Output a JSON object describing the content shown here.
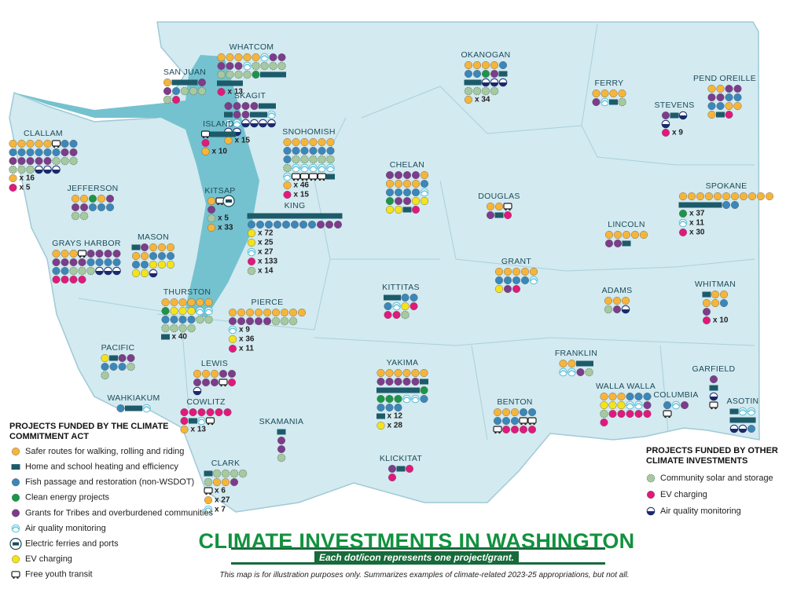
{
  "title": "CLIMATE INVESTMENTS IN WASHINGTON",
  "subtitle": "Each dot/icon represents one project/grant.",
  "note": "This map is for illustration purposes only. Summarizes examples of climate-related 2023-25 appropriations, but not all.",
  "legend": [
    {
      "heading": "PROJECTS FUNDED BY THE CLIMATE COMMITMENT ACT",
      "items": [
        "Safer routes for walking, rolling and riding",
        "Home and school heating and efficiency",
        "Fish passage and restoration (non-WSDOT)",
        "Clean energy projects",
        "Grants for Tribes and overburdened communities",
        "Air quality monitoring",
        "Electric ferries and ports",
        "EV charging",
        "Free youth transit"
      ]
    },
    {
      "heading": "PROJECTS FUNDED BY OTHER CLIMATE INVESTMENTS",
      "items": [
        "Community solar and storage",
        "EV charging",
        "Air quality monitoring"
      ]
    }
  ],
  "counties": [
    {
      "name": "WHATCOM",
      "items": [
        [
          0,
          5
        ],
        [
          5,
          1
        ],
        [
          4,
          5
        ],
        [
          5,
          1
        ],
        [
          9,
          8
        ],
        [
          3,
          1
        ],
        [
          1,
          6
        ]
      ],
      "multipliers": [
        {
          "type": 10,
          "label": "x 13"
        }
      ]
    },
    {
      "name": "SAN JUAN",
      "items": [
        [
          0,
          1
        ],
        [
          1,
          3
        ],
        [
          4,
          2
        ],
        [
          2,
          1
        ],
        [
          9,
          4
        ],
        [
          10,
          1
        ]
      ],
      "multipliers": []
    },
    {
      "name": "SKAGIT",
      "items": [
        [
          4,
          4
        ],
        [
          1,
          3
        ],
        [
          4,
          2
        ],
        [
          1,
          2
        ],
        [
          5,
          3
        ],
        [
          11,
          6
        ]
      ],
      "multipliers": [
        {
          "type": 0,
          "label": "x 15"
        }
      ]
    },
    {
      "name": "ISLAND",
      "items": [
        [
          8,
          1
        ],
        [
          1,
          3
        ],
        [
          10,
          1
        ]
      ],
      "multipliers": [
        {
          "type": 0,
          "label": "x 10"
        }
      ]
    },
    {
      "name": "CLALLAM",
      "items": [
        [
          0,
          5
        ],
        [
          8,
          1
        ],
        [
          2,
          8
        ],
        [
          4,
          7
        ],
        [
          9,
          6
        ],
        [
          11,
          3
        ]
      ],
      "multipliers": [
        {
          "type": 0,
          "label": "x 16"
        },
        {
          "type": 10,
          "label": "x 5"
        }
      ]
    },
    {
      "name": "SNOHOMISH",
      "items": [
        [
          0,
          6
        ],
        [
          2,
          7
        ],
        [
          9,
          6
        ],
        [
          5,
          6
        ],
        [
          8,
          4
        ],
        [
          1,
          1
        ]
      ],
      "multipliers": [
        {
          "type": 0,
          "label": "x 46"
        },
        {
          "type": 10,
          "label": "x 15"
        }
      ]
    },
    {
      "name": "OKANOGAN",
      "items": [
        [
          0,
          4
        ],
        [
          2,
          3
        ],
        [
          3,
          1
        ],
        [
          4,
          1
        ],
        [
          1,
          3
        ],
        [
          11,
          3
        ],
        [
          9,
          4
        ]
      ],
      "multipliers": [
        {
          "type": 0,
          "label": "x 34"
        }
      ]
    },
    {
      "name": "FERRY",
      "items": [
        [
          0,
          4
        ],
        [
          4,
          1
        ],
        [
          5,
          1
        ],
        [
          1,
          1
        ],
        [
          9,
          1
        ]
      ],
      "multipliers": []
    },
    {
      "name": "STEVENS",
      "items": [
        [
          4,
          1
        ],
        [
          1,
          1
        ],
        [
          11,
          2
        ]
      ],
      "multipliers": [
        {
          "type": 10,
          "label": "x 9"
        }
      ]
    },
    {
      "name": "PEND OREILLE",
      "items": [
        [
          0,
          2
        ],
        [
          4,
          4
        ],
        [
          2,
          4
        ],
        [
          0,
          3
        ],
        [
          1,
          1
        ],
        [
          10,
          1
        ]
      ],
      "multipliers": []
    },
    {
      "name": "JEFFERSON",
      "items": [
        [
          0,
          2
        ],
        [
          3,
          1
        ],
        [
          0,
          1
        ],
        [
          4,
          3
        ],
        [
          2,
          3
        ],
        [
          9,
          2
        ]
      ],
      "multipliers": []
    },
    {
      "name": "KITSAP",
      "items": [
        [
          0,
          1
        ],
        [
          8,
          1
        ],
        [
          6,
          1
        ],
        [
          4,
          1
        ]
      ],
      "multipliers": [
        {
          "type": 9,
          "label": "x 5"
        },
        {
          "type": 0,
          "label": "x 33"
        }
      ]
    },
    {
      "name": "CHELAN",
      "items": [
        [
          4,
          4
        ],
        [
          0,
          5
        ],
        [
          2,
          5
        ],
        [
          5,
          1
        ],
        [
          3,
          1
        ],
        [
          4,
          2
        ],
        [
          7,
          4
        ],
        [
          1,
          1
        ],
        [
          10,
          1
        ]
      ],
      "multipliers": []
    },
    {
      "name": "DOUGLAS",
      "items": [
        [
          0,
          2
        ],
        [
          8,
          1
        ],
        [
          4,
          1
        ],
        [
          1,
          1
        ],
        [
          10,
          1
        ]
      ],
      "multipliers": []
    },
    {
      "name": "SPOKANE",
      "items": [
        [
          0,
          11
        ],
        [
          1,
          5
        ],
        [
          2,
          2
        ]
      ],
      "multipliers": [
        {
          "type": 3,
          "label": "x 37"
        },
        {
          "type": 5,
          "label": "x 11"
        },
        {
          "type": 10,
          "label": "x 30"
        }
      ]
    },
    {
      "name": "KING",
      "items": [
        [
          1,
          11
        ],
        [
          2,
          8
        ],
        [
          4,
          3
        ]
      ],
      "multipliers": [
        {
          "type": 7,
          "label": "x 72"
        },
        {
          "type": 7,
          "label": "x 25"
        },
        {
          "type": 5,
          "label": "x 27"
        },
        {
          "type": 10,
          "label": "x 133"
        },
        {
          "type": 9,
          "label": "x 14"
        }
      ]
    },
    {
      "name": "LINCOLN",
      "items": [
        [
          0,
          5
        ],
        [
          4,
          2
        ],
        [
          1,
          1
        ]
      ],
      "multipliers": []
    },
    {
      "name": "GRAYS HARBOR",
      "items": [
        [
          0,
          3
        ],
        [
          8,
          1
        ],
        [
          4,
          8
        ],
        [
          2,
          6
        ],
        [
          9,
          3
        ],
        [
          11,
          3
        ],
        [
          10,
          4
        ]
      ],
      "multipliers": []
    },
    {
      "name": "MASON",
      "items": [
        [
          1,
          1
        ],
        [
          4,
          1
        ],
        [
          0,
          5
        ],
        [
          2,
          5
        ],
        [
          7,
          5
        ],
        [
          11,
          1
        ]
      ],
      "multipliers": []
    },
    {
      "name": "GRANT",
      "items": [
        [
          0,
          5
        ],
        [
          2,
          4
        ],
        [
          5,
          1
        ],
        [
          7,
          1
        ],
        [
          4,
          1
        ],
        [
          10,
          1
        ]
      ],
      "multipliers": []
    },
    {
      "name": "KITTITAS",
      "items": [
        [
          1,
          2
        ],
        [
          2,
          3
        ],
        [
          5,
          1
        ],
        [
          7,
          1
        ],
        [
          10,
          3
        ],
        [
          9,
          1
        ]
      ],
      "multipliers": []
    },
    {
      "name": "ADAMS",
      "items": [
        [
          0,
          3
        ],
        [
          9,
          1
        ],
        [
          4,
          1
        ],
        [
          11,
          1
        ]
      ],
      "multipliers": []
    },
    {
      "name": "WHITMAN",
      "items": [
        [
          1,
          1
        ],
        [
          0,
          4
        ],
        [
          2,
          1
        ],
        [
          4,
          1
        ]
      ],
      "multipliers": [
        {
          "type": 10,
          "label": "x 10"
        }
      ]
    },
    {
      "name": "THURSTON",
      "items": [
        [
          0,
          6
        ],
        [
          3,
          1
        ],
        [
          7,
          3
        ],
        [
          5,
          2
        ],
        [
          2,
          4
        ],
        [
          9,
          6
        ]
      ],
      "multipliers": [
        {
          "type": 1,
          "label": "x 40"
        }
      ]
    },
    {
      "name": "PIERCE",
      "items": [
        [
          0,
          9
        ],
        [
          4,
          5
        ],
        [
          9,
          3
        ]
      ],
      "multipliers": [
        {
          "type": 5,
          "label": "x 9"
        },
        {
          "type": 7,
          "label": "x 36"
        },
        {
          "type": 10,
          "label": "x 11"
        }
      ]
    },
    {
      "name": "PACIFIC",
      "items": [
        [
          7,
          1
        ],
        [
          1,
          1
        ],
        [
          4,
          2
        ],
        [
          2,
          3
        ],
        [
          9,
          2
        ]
      ],
      "multipliers": []
    },
    {
      "name": "LEWIS",
      "items": [
        [
          0,
          3
        ],
        [
          4,
          5
        ],
        [
          8,
          1
        ],
        [
          10,
          1
        ],
        [
          11,
          1
        ]
      ],
      "multipliers": []
    },
    {
      "name": "YAKIMA",
      "items": [
        [
          0,
          6
        ],
        [
          4,
          5
        ],
        [
          1,
          6
        ],
        [
          3,
          4
        ],
        [
          5,
          2
        ],
        [
          2,
          4
        ]
      ],
      "multipliers": [
        {
          "type": 1,
          "label": "x 12"
        },
        {
          "type": 7,
          "label": "x 28"
        }
      ]
    },
    {
      "name": "FRANKLIN",
      "items": [
        [
          0,
          2
        ],
        [
          1,
          2
        ],
        [
          5,
          2
        ],
        [
          4,
          1
        ],
        [
          9,
          1
        ]
      ],
      "multipliers": []
    },
    {
      "name": "GARFIELD",
      "items": [
        [
          4,
          1
        ],
        [
          1,
          1
        ],
        [
          11,
          1
        ],
        [
          8,
          1
        ]
      ],
      "multipliers": []
    },
    {
      "name": "WALLA WALLA",
      "items": [
        [
          0,
          3
        ],
        [
          2,
          3
        ],
        [
          7,
          3
        ],
        [
          5,
          2
        ],
        [
          4,
          1
        ],
        [
          9,
          1
        ],
        [
          10,
          6
        ]
      ],
      "multipliers": []
    },
    {
      "name": "COLUMBIA",
      "items": [
        [
          2,
          1
        ],
        [
          5,
          1
        ],
        [
          4,
          1
        ],
        [
          8,
          1
        ]
      ],
      "multipliers": []
    },
    {
      "name": "ASOTIN",
      "items": [
        [
          1,
          1
        ],
        [
          5,
          2
        ],
        [
          1,
          3
        ],
        [
          11,
          2
        ],
        [
          2,
          1
        ]
      ],
      "multipliers": []
    },
    {
      "name": "BENTON",
      "items": [
        [
          0,
          3
        ],
        [
          2,
          5
        ],
        [
          8,
          3
        ],
        [
          10,
          4
        ]
      ],
      "multipliers": []
    },
    {
      "name": "WAHKIAKUM",
      "items": [
        [
          2,
          1
        ],
        [
          1,
          2
        ],
        [
          5,
          1
        ]
      ],
      "multipliers": []
    },
    {
      "name": "COWLITZ",
      "items": [
        [
          10,
          7
        ],
        [
          1,
          1
        ],
        [
          5,
          1
        ],
        [
          8,
          1
        ]
      ],
      "multipliers": [
        {
          "type": 0,
          "label": "x 13"
        }
      ]
    },
    {
      "name": "SKAMANIA",
      "items": [
        [
          1,
          1
        ],
        [
          4,
          2
        ],
        [
          9,
          1
        ]
      ],
      "multipliers": []
    },
    {
      "name": "CLARK",
      "items": [
        [
          1,
          1
        ],
        [
          9,
          5
        ],
        [
          0,
          2
        ],
        [
          4,
          1
        ]
      ],
      "multipliers": [
        {
          "type": 8,
          "label": "x 6"
        },
        {
          "type": 0,
          "label": "x 27"
        },
        {
          "type": 5,
          "label": "x 7"
        }
      ]
    },
    {
      "name": "KLICKITAT",
      "items": [
        [
          4,
          1
        ],
        [
          1,
          1
        ],
        [
          10,
          2
        ]
      ],
      "multipliers": []
    }
  ]
}
